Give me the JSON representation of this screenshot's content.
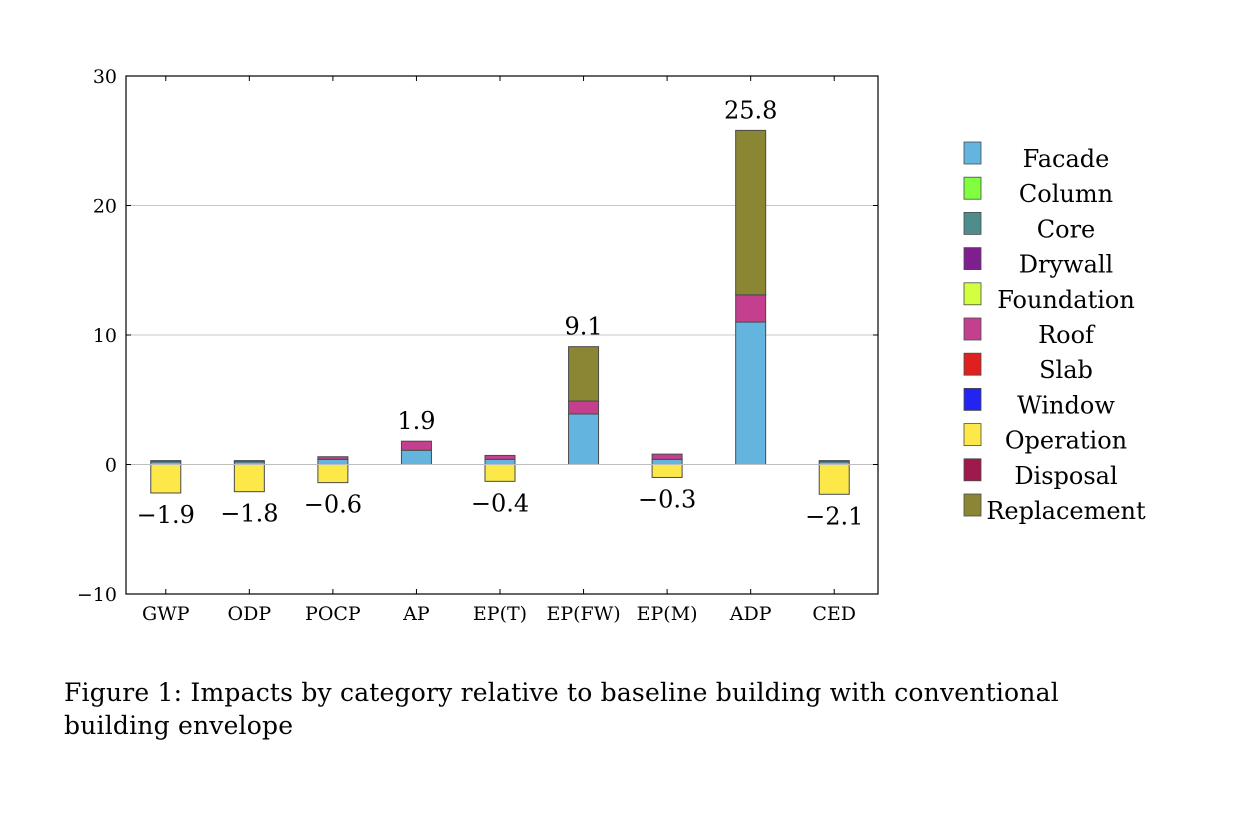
{
  "chart_data": {
    "type": "bar",
    "stacked": true,
    "categories": [
      "GWP",
      "ODP",
      "POCP",
      "AP",
      "EP(T)",
      "EP(FW)",
      "EP(M)",
      "ADP",
      "CED"
    ],
    "ylim": [
      -10,
      30
    ],
    "yticks": [
      -10,
      0,
      10,
      20,
      30
    ],
    "ytick_labels": [
      "−10",
      "0",
      "10",
      "20",
      "30"
    ],
    "grid": "horizontal",
    "legend_position": "right",
    "series": [
      {
        "name": "Facade",
        "color": "#63b5df",
        "values": [
          0.2,
          0.2,
          0.4,
          1.1,
          0.4,
          3.9,
          0.4,
          11.0,
          0.2
        ]
      },
      {
        "name": "Column",
        "color": "#7fff3f",
        "values": [
          0,
          0,
          0,
          0,
          0,
          0,
          0,
          0,
          0
        ]
      },
      {
        "name": "Core",
        "color": "#4f8c8c",
        "values": [
          0,
          0,
          0,
          0,
          0,
          0,
          0,
          0,
          0
        ]
      },
      {
        "name": "Drywall",
        "color": "#7f1e8f",
        "values": [
          0,
          0,
          0,
          0,
          0,
          0,
          0,
          0,
          0
        ]
      },
      {
        "name": "Foundation",
        "color": "#d2ff3f",
        "values": [
          0,
          0,
          0,
          0,
          0,
          0,
          0,
          0,
          0
        ]
      },
      {
        "name": "Roof",
        "color": "#c4408f",
        "values": [
          0.1,
          0.1,
          0.2,
          0.7,
          0.3,
          1.0,
          0.4,
          2.1,
          0.1
        ]
      },
      {
        "name": "Slab",
        "color": "#e02020",
        "values": [
          0,
          0,
          0,
          0,
          0,
          0,
          0,
          0,
          0
        ]
      },
      {
        "name": "Window",
        "color": "#2424f2",
        "values": [
          0,
          0,
          0,
          0,
          0,
          0,
          0,
          0,
          0
        ]
      },
      {
        "name": "Operation",
        "color": "#fde84a",
        "values": [
          -2.2,
          -2.1,
          -1.4,
          0,
          -1.3,
          0,
          -1.0,
          0,
          -2.3
        ]
      },
      {
        "name": "Disposal",
        "color": "#a0194c",
        "values": [
          0,
          0,
          0,
          0,
          0,
          0,
          0,
          0,
          0
        ]
      },
      {
        "name": "Replacement",
        "color": "#8b8633",
        "values": [
          0,
          0,
          0,
          0,
          0,
          4.2,
          0,
          12.7,
          0
        ]
      }
    ],
    "total_labels": [
      "−1.9",
      "−1.8",
      "−0.6",
      "1.9",
      "−0.4",
      "9.1",
      "−0.3",
      "25.8",
      "−2.1"
    ],
    "totals": [
      -1.9,
      -1.8,
      -0.6,
      1.9,
      -0.4,
      9.1,
      -0.3,
      25.8,
      -2.1
    ],
    "title": "",
    "xlabel": "",
    "ylabel": ""
  },
  "caption": "Figure 1: Impacts by category relative to baseline building with conventional building envelope"
}
